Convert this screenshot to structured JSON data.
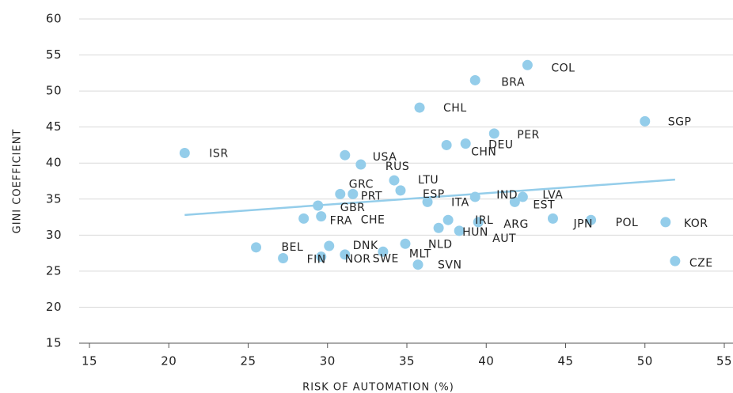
{
  "chart_data": {
    "type": "scatter",
    "xlabel": "RISK OF AUTOMATION (%)",
    "ylabel": "GINI COEFFICIENT",
    "color": "#94cdea",
    "point_labels": [
      "ISR",
      "COL",
      "BRA",
      "CHL",
      "SGP",
      "PER",
      "DEU",
      "CHN",
      "USA",
      "RUS",
      "LTU",
      "GRC",
      "PRT",
      "ESP",
      "GBR",
      "ITA",
      "IND",
      "LVA",
      "EST",
      "FRA",
      "CHE",
      "IRL",
      "ARG",
      "HUN",
      "AUT",
      "JPN",
      "POL",
      "KOR",
      "CZE",
      "BEL",
      "DNK",
      "NLD",
      "MLT",
      "SWE",
      "FIN",
      "NOR",
      "SVN"
    ],
    "x": [
      21.0,
      42.6,
      39.3,
      35.8,
      50.0,
      40.5,
      38.7,
      37.5,
      31.1,
      32.1,
      34.2,
      30.8,
      31.6,
      34.6,
      29.4,
      36.3,
      39.3,
      42.3,
      41.8,
      28.5,
      29.6,
      37.6,
      39.5,
      37.0,
      38.3,
      44.2,
      46.6,
      51.3,
      51.9,
      25.5,
      30.1,
      34.9,
      33.5,
      29.6,
      27.2,
      31.1,
      35.7
    ],
    "values": [
      41.4,
      53.6,
      51.5,
      47.7,
      45.8,
      44.1,
      42.7,
      42.5,
      41.1,
      39.8,
      37.6,
      35.7,
      35.7,
      36.2,
      34.1,
      34.6,
      35.3,
      35.3,
      34.6,
      32.3,
      32.6,
      32.1,
      31.8,
      31.0,
      30.6,
      32.3,
      32.1,
      31.8,
      26.4,
      28.3,
      28.5,
      28.8,
      27.7,
      27.0,
      26.8,
      27.3,
      25.9
    ],
    "trendline": {
      "x": [
        21.0,
        51.9
      ],
      "values": [
        32.8,
        37.7
      ],
      "color": "#94cdea"
    },
    "xlim": [
      15,
      55
    ],
    "xticks": [
      15,
      20,
      25,
      30,
      35,
      40,
      45,
      50,
      55
    ],
    "ylim": [
      15,
      60
    ],
    "yticks": [
      15,
      20,
      25,
      30,
      35,
      40,
      45,
      50,
      55,
      60
    ],
    "grid": true
  }
}
